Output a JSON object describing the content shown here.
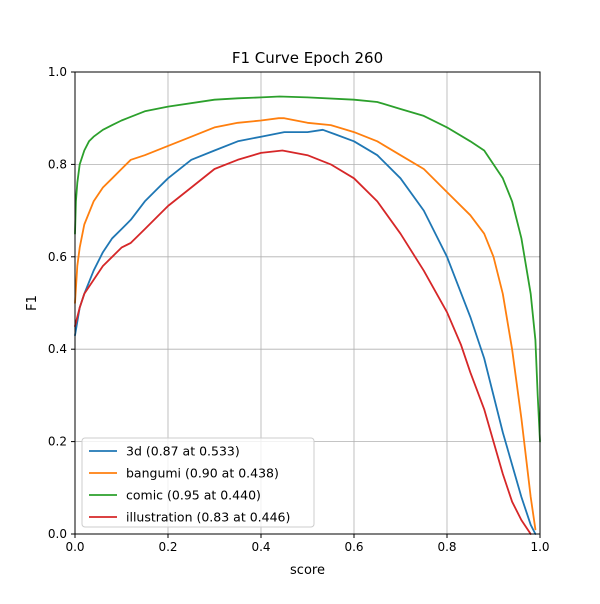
{
  "chart_data": {
    "type": "line",
    "title": "F1 Curve Epoch 260",
    "xlabel": "score",
    "ylabel": "F1",
    "xlim": [
      0,
      1
    ],
    "ylim": [
      0,
      1
    ],
    "xticks": [
      0.0,
      0.2,
      0.4,
      0.6,
      0.8,
      1.0
    ],
    "yticks": [
      0.0,
      0.2,
      0.4,
      0.6,
      0.8,
      1.0
    ],
    "xtick_labels": [
      "0.0",
      "0.2",
      "0.4",
      "0.6",
      "0.8",
      "1.0"
    ],
    "ytick_labels": [
      "0.0",
      "0.2",
      "0.4",
      "0.6",
      "0.8",
      "1.0"
    ],
    "grid": true,
    "legend_position": "lower-left",
    "series": [
      {
        "name": "3d (0.87 at 0.533)",
        "color": "#1f77b4",
        "x": [
          0.0,
          0.01,
          0.02,
          0.04,
          0.06,
          0.08,
          0.1,
          0.12,
          0.15,
          0.18,
          0.2,
          0.25,
          0.3,
          0.35,
          0.4,
          0.45,
          0.5,
          0.533,
          0.56,
          0.6,
          0.65,
          0.7,
          0.75,
          0.8,
          0.85,
          0.88,
          0.9,
          0.92,
          0.94,
          0.96,
          0.98,
          0.99
        ],
        "y": [
          0.43,
          0.49,
          0.52,
          0.57,
          0.61,
          0.64,
          0.66,
          0.68,
          0.72,
          0.75,
          0.77,
          0.81,
          0.83,
          0.85,
          0.86,
          0.87,
          0.87,
          0.875,
          0.865,
          0.85,
          0.82,
          0.77,
          0.7,
          0.6,
          0.47,
          0.38,
          0.3,
          0.22,
          0.15,
          0.08,
          0.02,
          0.0
        ]
      },
      {
        "name": "bangumi (0.90 at 0.438)",
        "color": "#ff7f0e",
        "x": [
          0.0,
          0.005,
          0.01,
          0.02,
          0.04,
          0.06,
          0.08,
          0.1,
          0.12,
          0.15,
          0.2,
          0.25,
          0.3,
          0.35,
          0.4,
          0.438,
          0.45,
          0.5,
          0.55,
          0.6,
          0.65,
          0.7,
          0.75,
          0.8,
          0.85,
          0.88,
          0.9,
          0.92,
          0.94,
          0.96,
          0.98,
          0.99
        ],
        "y": [
          0.5,
          0.58,
          0.62,
          0.67,
          0.72,
          0.75,
          0.77,
          0.79,
          0.81,
          0.82,
          0.84,
          0.86,
          0.88,
          0.89,
          0.895,
          0.9,
          0.9,
          0.89,
          0.885,
          0.87,
          0.85,
          0.82,
          0.79,
          0.74,
          0.69,
          0.65,
          0.6,
          0.52,
          0.4,
          0.25,
          0.08,
          0.01
        ]
      },
      {
        "name": "comic (0.95 at 0.440)",
        "color": "#2ca02c",
        "x": [
          0.0,
          0.002,
          0.005,
          0.01,
          0.02,
          0.03,
          0.04,
          0.06,
          0.08,
          0.1,
          0.15,
          0.2,
          0.3,
          0.35,
          0.4,
          0.44,
          0.5,
          0.6,
          0.65,
          0.7,
          0.75,
          0.8,
          0.85,
          0.88,
          0.9,
          0.92,
          0.94,
          0.96,
          0.98,
          0.99,
          0.995,
          1.0
        ],
        "y": [
          0.65,
          0.72,
          0.76,
          0.8,
          0.83,
          0.85,
          0.86,
          0.875,
          0.885,
          0.895,
          0.915,
          0.925,
          0.94,
          0.943,
          0.945,
          0.947,
          0.945,
          0.94,
          0.935,
          0.92,
          0.905,
          0.88,
          0.85,
          0.83,
          0.8,
          0.77,
          0.72,
          0.64,
          0.52,
          0.42,
          0.3,
          0.2
        ]
      },
      {
        "name": "illustration (0.83 at 0.446)",
        "color": "#d62728",
        "x": [
          0.0,
          0.01,
          0.02,
          0.04,
          0.06,
          0.08,
          0.1,
          0.12,
          0.15,
          0.18,
          0.2,
          0.25,
          0.3,
          0.35,
          0.4,
          0.446,
          0.5,
          0.55,
          0.6,
          0.65,
          0.7,
          0.75,
          0.8,
          0.83,
          0.85,
          0.88,
          0.9,
          0.92,
          0.94,
          0.96,
          0.98
        ],
        "y": [
          0.45,
          0.49,
          0.52,
          0.55,
          0.58,
          0.6,
          0.62,
          0.63,
          0.66,
          0.69,
          0.71,
          0.75,
          0.79,
          0.81,
          0.825,
          0.83,
          0.82,
          0.8,
          0.77,
          0.72,
          0.65,
          0.57,
          0.48,
          0.41,
          0.35,
          0.27,
          0.2,
          0.13,
          0.07,
          0.03,
          0.0
        ]
      }
    ]
  }
}
